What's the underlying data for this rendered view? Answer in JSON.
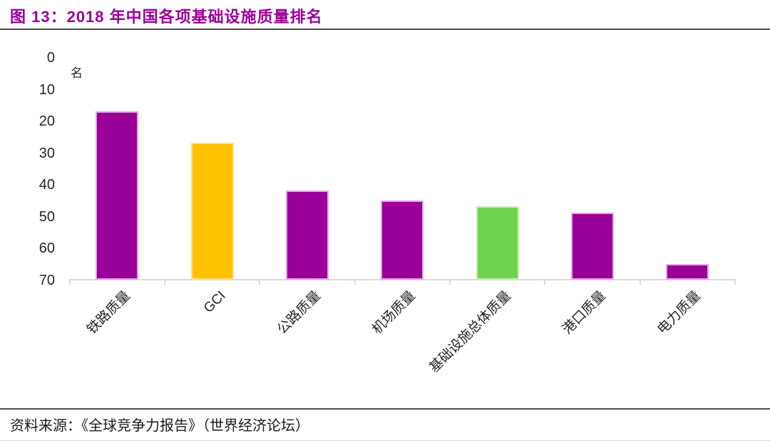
{
  "figure": {
    "title": "图 13：2018 年中国各项基础设施质量排名",
    "source": "资料来源：《全球竞争力报告》（世界经济论坛）"
  },
  "chart_data": {
    "type": "bar",
    "title": "2018 年中国各项基础设施质量排名",
    "unit_label": "名",
    "categories": [
      "铁路质量",
      "GCI",
      "公路质量",
      "机场质量",
      "基础设施总体质量",
      "港口质量",
      "电力质量"
    ],
    "values": [
      17,
      27,
      42,
      45,
      47,
      49,
      65
    ],
    "bar_colors": [
      "#990099",
      "#ffc000",
      "#990099",
      "#990099",
      "#6fd44d",
      "#990099",
      "#990099"
    ],
    "bar_border_colors": [
      "#e2a9e2",
      "#ffe18a",
      "#e2a9e2",
      "#e2a9e2",
      "#c9f0b4",
      "#e2a9e2",
      "#e2a9e2"
    ],
    "y_axis": {
      "ticks": [
        0,
        10,
        20,
        30,
        40,
        50,
        60,
        70
      ],
      "min": 0,
      "max": 70,
      "tick_interval": 10,
      "inverted": true,
      "note_axis_meaning": "rank (名), lower number = better, 0 at top"
    },
    "x_label_rotation_deg": -45,
    "legend": "none",
    "grid": "off"
  },
  "colors": {
    "title_accent": "#990099",
    "axis_line": "#d9d9d9",
    "divider": "#4a4a4a",
    "tick_text": "#262626"
  }
}
